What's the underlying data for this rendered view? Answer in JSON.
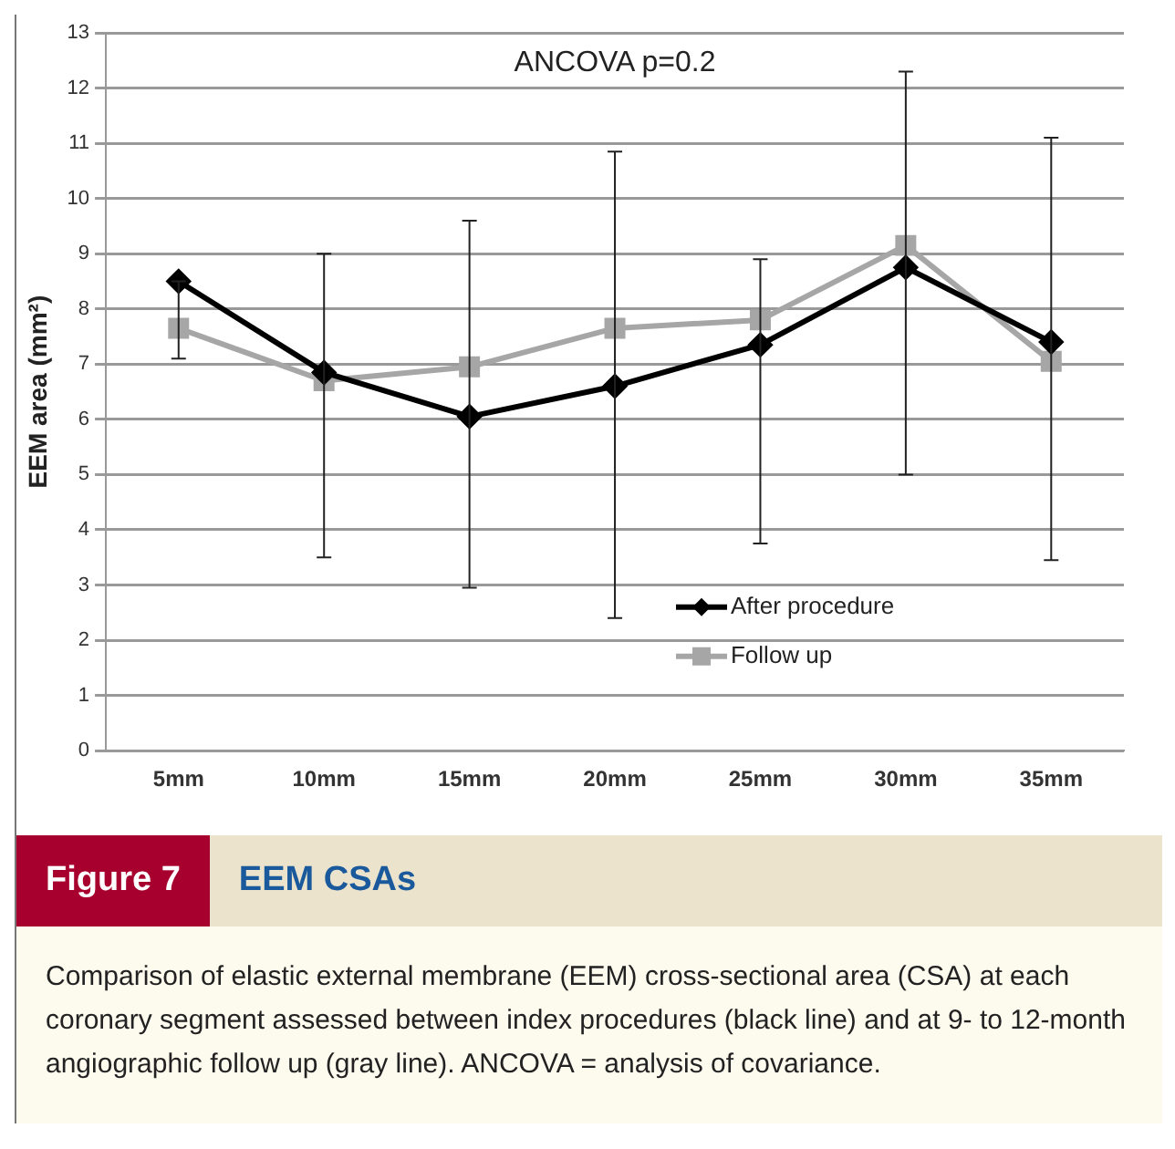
{
  "chart_data": {
    "type": "line",
    "title": "EEM CSAs",
    "subtitle": "Figure 7",
    "ylabel": "EEM area (mm²)",
    "categories": [
      "5mm",
      "10mm",
      "15mm",
      "20mm",
      "25mm",
      "30mm",
      "35mm"
    ],
    "series": [
      {
        "name": "After procedure",
        "color": "#000000",
        "marker": "diamond",
        "values": [
          8.5,
          6.85,
          6.05,
          6.6,
          7.35,
          8.75,
          7.4
        ],
        "errors": [
          [
            7.1,
            8.5
          ],
          [
            3.5,
            9.0
          ],
          [
            2.95,
            9.6
          ],
          [
            2.4,
            10.85
          ],
          [
            3.75,
            8.9
          ],
          [
            5.0,
            12.3
          ],
          [
            3.45,
            11.1
          ]
        ]
      },
      {
        "name": "Follow up",
        "color": "#a6a6a6",
        "marker": "square",
        "values": [
          7.65,
          6.7,
          6.95,
          7.65,
          7.8,
          9.15,
          7.05
        ]
      }
    ],
    "ylim": [
      0,
      13
    ],
    "yticks": [
      0,
      1,
      2,
      3,
      4,
      5,
      6,
      7,
      8,
      9,
      10,
      11,
      12,
      13
    ],
    "grid": "y",
    "legend": "bottom right",
    "annotations": [
      "ANCOVA p=0.2",
      "Comparison of elastic external membrane (EEM) cross-sectional area (CSA) at each coronary segment assessed between index procedures (black line) and at 9- to 12-month angiographic follow up (gray line). ANCOVA = analysis of covariance."
    ]
  }
}
